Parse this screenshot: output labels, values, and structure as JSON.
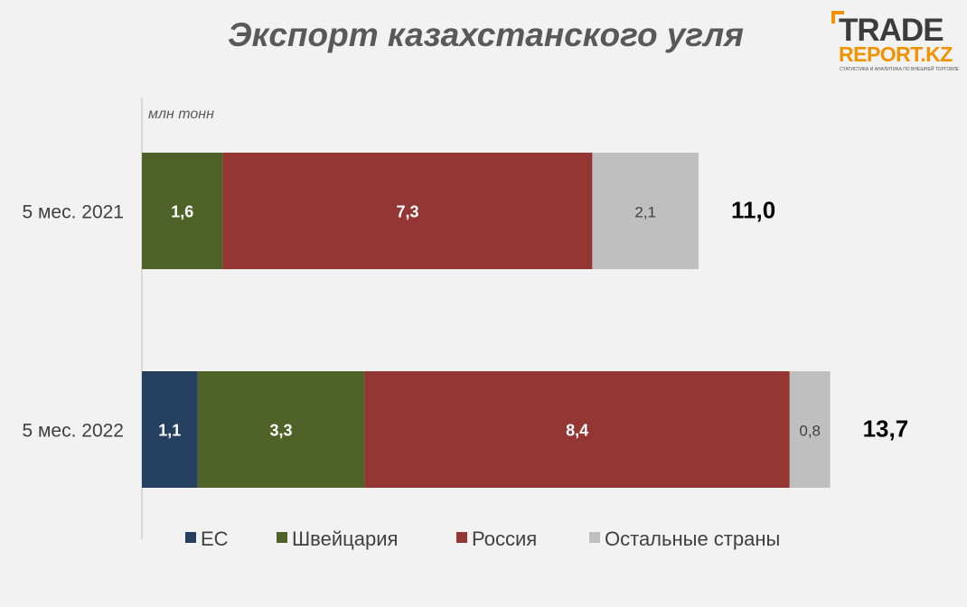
{
  "title": "Экспорт казахстанского угля",
  "logo": {
    "line1": "TRADE",
    "line2": "REPORT.KZ",
    "tagline": "СТАТИСТИКА И АНАЛИТИКА ПО ВНЕШНЕЙ ТОРГОВЛЕ"
  },
  "chart_data": {
    "type": "bar",
    "orientation": "horizontal",
    "stacked": true,
    "unit_label": "млн тонн",
    "categories": [
      "5 мес. 2021",
      "5 мес. 2022"
    ],
    "series": [
      {
        "name": "ЕС",
        "values": [
          0,
          1.1
        ],
        "labels": [
          "",
          "1,1"
        ],
        "color": "#243f60",
        "label_color": "#ffffff",
        "label_bold": true
      },
      {
        "name": "Швейцария",
        "values": [
          1.6,
          3.3
        ],
        "labels": [
          "1,6",
          "3,3"
        ],
        "color": "#4f6228",
        "label_color": "#ffffff",
        "label_bold": true
      },
      {
        "name": "Россия",
        "values": [
          7.3,
          8.4
        ],
        "labels": [
          "7,3",
          "8,4"
        ],
        "color": "#943634",
        "label_color": "#ffffff",
        "label_bold": true
      },
      {
        "name": "Остальные страны",
        "values": [
          2.1,
          0.8
        ],
        "labels": [
          "2,1",
          "0,8"
        ],
        "color": "#bfbfbf",
        "label_color": "#404040",
        "label_bold": false
      }
    ],
    "totals": [
      11.0,
      13.7
    ],
    "total_labels": [
      "11,0",
      "13,7"
    ],
    "xlim": [
      0,
      14.4
    ],
    "grid": false,
    "legend_position": "bottom"
  }
}
